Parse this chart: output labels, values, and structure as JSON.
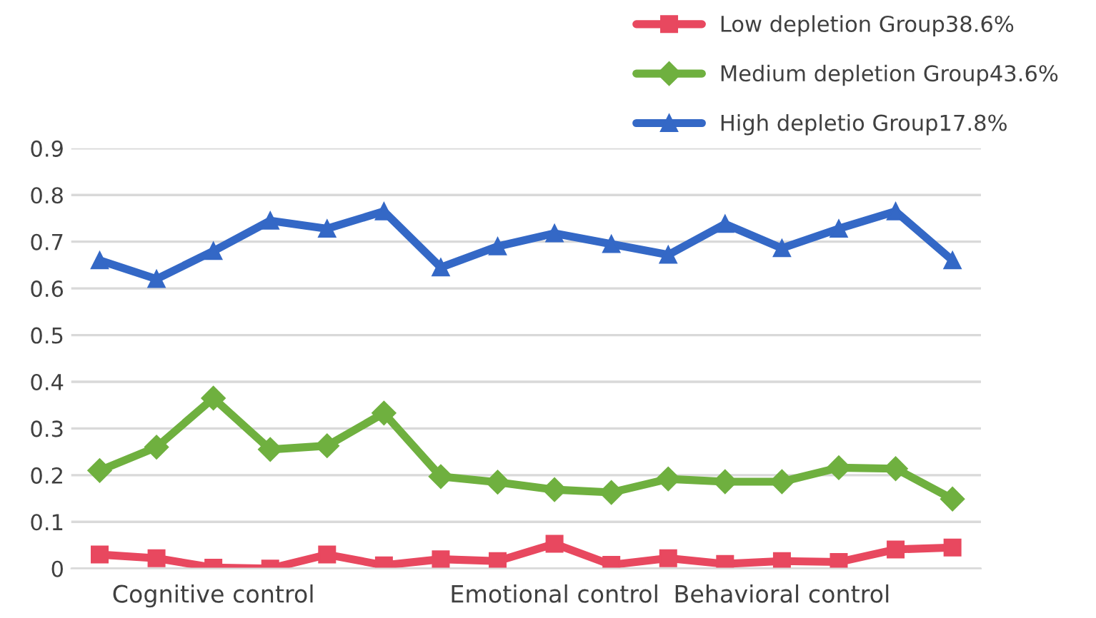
{
  "chart_data": {
    "type": "line",
    "categories": [
      null,
      null,
      "Cognitive control",
      null,
      null,
      null,
      null,
      null,
      "Emotional control",
      null,
      null,
      null,
      "Behavioral control",
      null,
      null,
      null
    ],
    "series": [
      {
        "name": "Low depletion Group38.6%",
        "color": "#e8485f",
        "marker": "square",
        "values": [
          0.03,
          0.022,
          0.002,
          0.0,
          0.03,
          0.007,
          0.02,
          0.016,
          0.053,
          0.008,
          0.022,
          0.01,
          0.016,
          0.014,
          0.041,
          0.045
        ]
      },
      {
        "name": "Medium depletion Group43.6%",
        "color": "#6fb03f",
        "marker": "diamond",
        "values": [
          0.21,
          0.26,
          0.365,
          0.255,
          0.263,
          0.333,
          0.197,
          0.185,
          0.169,
          0.163,
          0.192,
          0.186,
          0.186,
          0.216,
          0.214,
          0.149
        ]
      },
      {
        "name": "High depletio Group17.8%",
        "color": "#3468c6",
        "marker": "triangle",
        "values": [
          0.66,
          0.62,
          0.68,
          0.745,
          0.728,
          0.765,
          0.645,
          0.69,
          0.718,
          0.695,
          0.672,
          0.738,
          0.686,
          0.728,
          0.765,
          0.66
        ]
      }
    ],
    "ylim": [
      0,
      0.9
    ],
    "yticks": [
      0,
      0.1,
      0.2,
      0.3,
      0.4,
      0.5,
      0.6,
      0.7,
      0.8,
      0.9
    ],
    "grid": "y",
    "legend": "top right"
  }
}
